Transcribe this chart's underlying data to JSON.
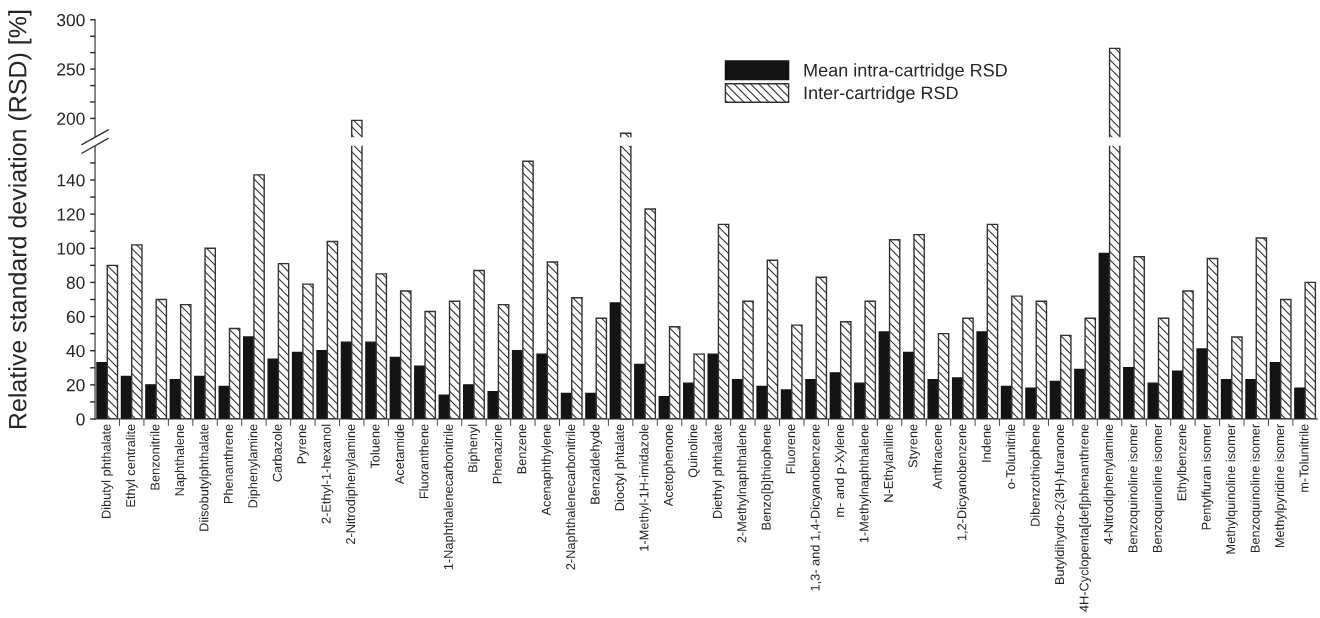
{
  "chart_data": [
    {
      "type": "bar",
      "series": [
        {
          "color": "#333333",
          "values": [
            null,
            null,
            null,
            null,
            null,
            null,
            null,
            null,
            null,
            null,
            198,
            null,
            null,
            null,
            null,
            null,
            null,
            null,
            null,
            null,
            null,
            185,
            null,
            null,
            null,
            null,
            null,
            null,
            null,
            null,
            null,
            null,
            null,
            null,
            null,
            null,
            null,
            null,
            null,
            null,
            null,
            271,
            null,
            null,
            null,
            null,
            null,
            null,
            null,
            null
          ]
        }
      ],
      "ylim": [
        181,
        300
      ],
      "yticks": [
        200,
        {
          "value": 216.7,
          "label": null
        },
        {
          "value": 233.3,
          "label": null
        },
        250,
        {
          "value": 266.7,
          "label": null
        },
        {
          "value": 283.3,
          "label": null
        },
        300
      ],
      "tick_labels": "y"
    },
    {
      "type": "bar",
      "categories": [
        "Dibutyl phthalate",
        "Ethyl centralite",
        "Benzonitrile",
        "Naphthalene",
        "Diisobutylphthalate",
        "Phenanthrene",
        "Diphenylamine",
        "Carbazole",
        "Pyrene",
        "2-Ethyl-1-hexanol",
        "2-Nitrodiphenylamine",
        "Toluene",
        "Acetamide",
        "Fluoranthene",
        "1-Naphthalenecarbonitrile",
        "Biphenyl",
        "Phenazine",
        "Benzene",
        "Acenaphthylene",
        "2-Naphthalenecarbonitrile",
        "Benzaldehyde",
        "Dioctyl phtalate",
        "1-Methyl-1H-imidazole",
        "Acetophenone",
        "Quinoline",
        "Diethyl phthalate",
        "2-Methylnaphthalene",
        "Benzo[b]thiophene",
        "Fluorene",
        "1,3- and 1,4-Dicyanobenzene",
        "m- and p-Xylene",
        "1-Methylnaphthalene",
        "N-Ethylaniline",
        "Styrene",
        "Anthracene",
        "1,2-Dicyanobenzene",
        "Indene",
        "o-Tolunitrile",
        "Dibenzothiophene",
        "Butyldihydro-2(3H)-furanone",
        "4H-Cyclopenta[def]phenanthrene",
        "4-Nitrodiphenylamine",
        "Benzoquinoline isomer",
        "Benzoquinoline isomer",
        "Ethylbenzene",
        "Pentylfuran isomer",
        "Methylquinoline isomer",
        "Benzoquinoline isomer",
        "Methylpyridine isomer",
        "m-Tolunitrile"
      ],
      "series": [
        {
          "name": "Mean intra-cartridge RSD",
          "color": "#141414",
          "values": [
            33,
            25,
            20,
            23,
            25,
            19,
            48,
            35,
            39,
            40,
            45,
            45,
            36,
            31,
            14,
            20,
            16,
            40,
            38,
            15,
            15,
            68,
            32,
            13,
            21,
            38,
            23,
            19,
            17,
            23,
            27,
            21,
            51,
            39,
            23,
            24,
            51,
            19,
            18,
            22,
            29,
            97,
            30,
            21,
            28,
            41,
            23,
            23,
            33,
            18
          ]
        },
        {
          "name": "Inter-cartridge RSD",
          "color": "#333333",
          "values": [
            90,
            102,
            70,
            67,
            100,
            53,
            143,
            91,
            79,
            104,
            null,
            85,
            75,
            63,
            69,
            87,
            67,
            151,
            92,
            71,
            59,
            null,
            123,
            54,
            38,
            114,
            69,
            93,
            55,
            83,
            57,
            69,
            105,
            108,
            50,
            59,
            114,
            72,
            69,
            49,
            59,
            null,
            95,
            59,
            75,
            94,
            48,
            106,
            70,
            80
          ]
        }
      ],
      "ylim": [
        0,
        160
      ],
      "yticks": [
        0,
        {
          "value": 10,
          "label": null
        },
        20,
        {
          "value": 30,
          "label": null
        },
        40,
        {
          "value": 50,
          "label": null
        },
        60,
        {
          "value": 70,
          "label": null
        },
        80,
        {
          "value": 90,
          "label": null
        },
        100,
        {
          "value": 110,
          "label": null
        },
        120,
        {
          "value": 130,
          "label": null
        },
        140,
        {
          "value": 150,
          "label": null
        }
      ],
      "ylabel": "Relative standard deviation (RSD) [%]",
      "legend": "top right"
    }
  ]
}
